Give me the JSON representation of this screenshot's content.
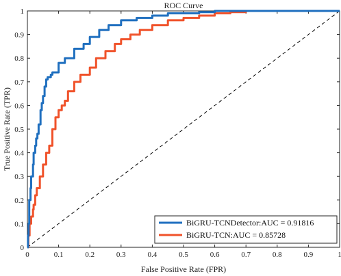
{
  "chart_data": {
    "type": "line",
    "title": "ROC Curve",
    "xlabel": "False Positive Rate (FPR)",
    "ylabel": "True Positive Rate (TPR)",
    "xlim": [
      0,
      1
    ],
    "ylim": [
      0,
      1
    ],
    "x_ticks": [
      0,
      0.1,
      0.2,
      0.3,
      0.4,
      0.5,
      0.6,
      0.7,
      0.8,
      0.9,
      1
    ],
    "x_tick_labels": [
      "0",
      "0.1",
      "0.2",
      "0.3",
      "0.4",
      "0.5",
      "0.6",
      "0.7",
      "0.8",
      "0.9",
      "1"
    ],
    "y_ticks": [
      0,
      0.1,
      0.2,
      0.3,
      0.4,
      0.5,
      0.6,
      0.7,
      0.8,
      0.9,
      1
    ],
    "y_tick_labels": [
      "0",
      "0.1",
      "0.2",
      "0.3",
      "0.4",
      "0.5",
      "0.6",
      "0.7",
      "0.8",
      "0.9",
      "1"
    ],
    "grid": false,
    "legend_position": "bottom-right",
    "series": [
      {
        "name": "BiGRU-TCNDetector:AUC = 0.91816",
        "color": "#1f6fbf",
        "x": [
          0,
          0.002,
          0.004,
          0.006,
          0.01,
          0.012,
          0.018,
          0.02,
          0.025,
          0.028,
          0.032,
          0.036,
          0.042,
          0.046,
          0.05,
          0.055,
          0.06,
          0.065,
          0.07,
          0.075,
          0.08,
          0.1,
          0.12,
          0.15,
          0.18,
          0.2,
          0.23,
          0.26,
          0.3,
          0.35,
          0.4,
          0.45,
          0.5,
          0.55,
          0.6,
          0.65,
          0.7,
          0.8,
          0.9,
          1
        ],
        "y": [
          0,
          0.05,
          0.1,
          0.2,
          0.25,
          0.3,
          0.35,
          0.4,
          0.43,
          0.46,
          0.48,
          0.52,
          0.58,
          0.61,
          0.64,
          0.68,
          0.71,
          0.72,
          0.72,
          0.73,
          0.74,
          0.78,
          0.8,
          0.84,
          0.86,
          0.89,
          0.92,
          0.94,
          0.96,
          0.97,
          0.98,
          0.99,
          0.99,
          0.995,
          1,
          1,
          1,
          1,
          1,
          1
        ]
      },
      {
        "name": "BiGRU-TCN:AUC = 0.85728",
        "color": "#f0522a",
        "x": [
          0,
          0.003,
          0.007,
          0.012,
          0.018,
          0.02,
          0.025,
          0.03,
          0.04,
          0.05,
          0.06,
          0.07,
          0.08,
          0.09,
          0.1,
          0.11,
          0.12,
          0.13,
          0.15,
          0.17,
          0.2,
          0.22,
          0.25,
          0.28,
          0.3,
          0.33,
          0.36,
          0.4,
          0.45,
          0.5,
          0.55,
          0.6,
          0.65,
          0.7,
          0.75,
          0.8,
          0.9,
          1
        ],
        "y": [
          0,
          0.05,
          0.1,
          0.13,
          0.16,
          0.18,
          0.22,
          0.25,
          0.3,
          0.35,
          0.4,
          0.43,
          0.5,
          0.55,
          0.58,
          0.6,
          0.62,
          0.66,
          0.7,
          0.73,
          0.76,
          0.8,
          0.83,
          0.86,
          0.88,
          0.9,
          0.92,
          0.94,
          0.96,
          0.97,
          0.98,
          0.99,
          0.995,
          1,
          1,
          1,
          1,
          1
        ]
      }
    ],
    "reference_line": {
      "x": [
        0,
        1
      ],
      "y": [
        0,
        1
      ],
      "style": "dashed",
      "color": "#000000"
    }
  }
}
